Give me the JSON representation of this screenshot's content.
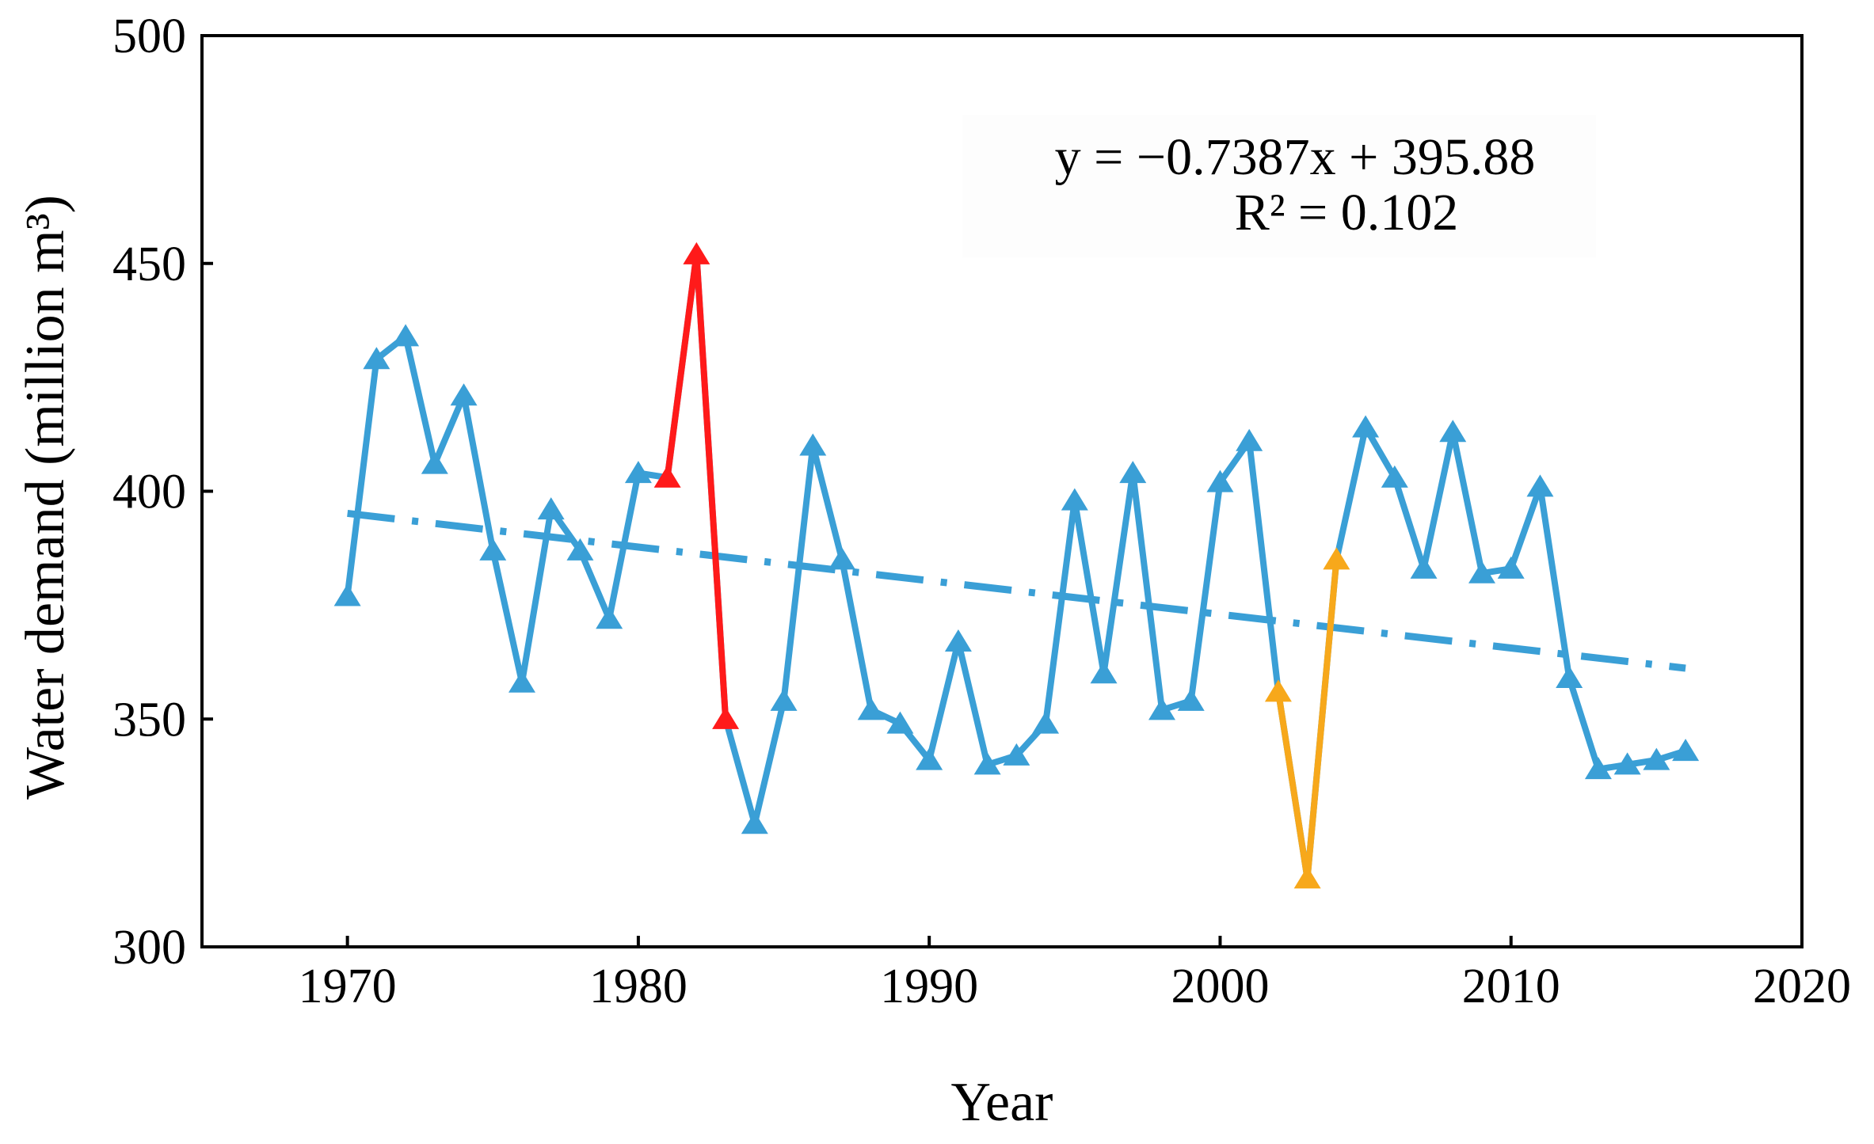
{
  "chart_data": {
    "type": "line",
    "title": "",
    "xlabel": "Year",
    "ylabel": "Water demand (million m³)",
    "xlim": [
      1965,
      2020
    ],
    "ylim": [
      300,
      500
    ],
    "xticks": [
      1970,
      1980,
      1990,
      2000,
      2010,
      2020
    ],
    "yticks": [
      300,
      350,
      400,
      450,
      500
    ],
    "grid": false,
    "marker": "triangle",
    "colors": {
      "series": "#3a9fd6",
      "highlight_red": "#ff1a1a",
      "highlight_orange": "#f7a81b",
      "trend": "#3a9fd6"
    },
    "series": [
      {
        "name": "Water demand",
        "x": [
          1970,
          1971,
          1972,
          1973,
          1974,
          1975,
          1976,
          1977,
          1978,
          1979,
          1980,
          1981,
          1982,
          1983,
          1984,
          1985,
          1986,
          1987,
          1988,
          1989,
          1990,
          1991,
          1992,
          1993,
          1994,
          1995,
          1996,
          1997,
          1998,
          1999,
          2000,
          2001,
          2002,
          2003,
          2004,
          2005,
          2006,
          2007,
          2008,
          2009,
          2010,
          2011,
          2012,
          2013,
          2014,
          2015,
          2016
        ],
        "values": [
          377,
          429,
          434,
          406,
          421,
          387,
          358,
          396,
          387,
          372,
          404,
          403,
          452,
          350,
          327,
          354,
          410,
          385,
          352,
          349,
          341,
          367,
          340,
          342,
          349,
          398,
          360,
          404,
          352,
          354,
          402,
          411,
          356,
          315,
          385,
          414,
          403,
          383,
          413,
          382,
          383,
          401,
          359,
          339,
          340,
          341,
          343
        ]
      }
    ],
    "highlighted_segments": [
      {
        "name": "red",
        "x": [
          1981,
          1982,
          1983
        ],
        "values": [
          403,
          452,
          350
        ]
      },
      {
        "name": "orange",
        "x": [
          2002,
          2003,
          2004
        ],
        "values": [
          356,
          315,
          385
        ]
      }
    ],
    "trendline": {
      "style": "dash-dot",
      "x_start": 1970,
      "x_end": 2016,
      "equation": "y = −0.7387x + 395.88",
      "r_squared": "R² = 0.102"
    }
  }
}
